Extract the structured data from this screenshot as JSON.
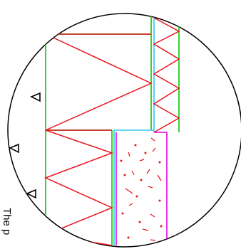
{
  "caption": "The p",
  "colors": {
    "outline": "#000000",
    "wall_edge": "#22cc22",
    "zigzag": "#e8141c",
    "inner_edge": "#33c6e8",
    "slab_edge": "#e600e6",
    "debris": "#e8141c"
  },
  "symbols": [
    "triangle-marker",
    "triangle-marker",
    "triangle-marker"
  ]
}
